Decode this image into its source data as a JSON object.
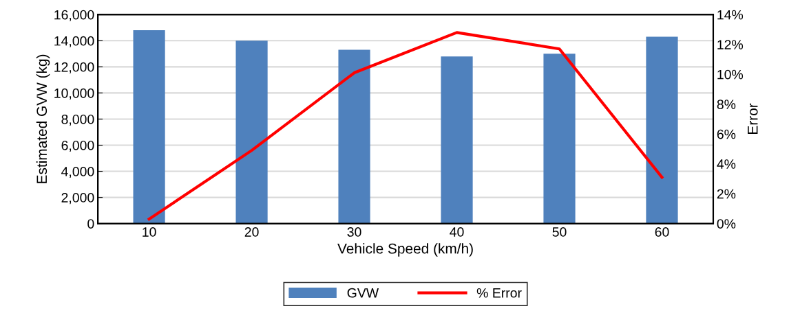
{
  "chart_data": {
    "type": "bar",
    "xlabel": "Vehicle Speed (km/h)",
    "ylabel": "Estimated GVW (kg)",
    "y2label": "Error",
    "categories": [
      "10",
      "20",
      "30",
      "40",
      "50",
      "60"
    ],
    "series": [
      {
        "name": "GVW",
        "color": "#4f81bd",
        "values": [
          14800,
          14000,
          13300,
          12800,
          13000,
          14300
        ]
      },
      {
        "name": "% Error",
        "type": "line",
        "axis": "y2",
        "color": "#ff0000",
        "values": [
          0.3,
          4.9,
          10.1,
          12.8,
          11.7,
          3.1
        ]
      }
    ],
    "ylim": [
      0,
      16000
    ],
    "yticks": [
      {
        "value": 0,
        "label": "0"
      },
      {
        "value": 2000,
        "label": "2,000"
      },
      {
        "value": 4000,
        "label": "4,000"
      },
      {
        "value": 6000,
        "label": "6,000"
      },
      {
        "value": 8000,
        "label": "8,000"
      },
      {
        "value": 10000,
        "label": "10,000"
      },
      {
        "value": 12000,
        "label": "12,000"
      },
      {
        "value": 14000,
        "label": "14,000"
      },
      {
        "value": 16000,
        "label": "16,000"
      }
    ],
    "y2lim": [
      0,
      14
    ],
    "y2ticks": [
      {
        "value": 0,
        "label": "0%"
      },
      {
        "value": 2,
        "label": "2%"
      },
      {
        "value": 4,
        "label": "4%"
      },
      {
        "value": 6,
        "label": "6%"
      },
      {
        "value": 8,
        "label": "8%"
      },
      {
        "value": 10,
        "label": "10%"
      },
      {
        "value": 12,
        "label": "12%"
      },
      {
        "value": 14,
        "label": "14%"
      }
    ],
    "grid": "y",
    "legend": "bottom",
    "marker": "none",
    "line_style": "solid"
  }
}
